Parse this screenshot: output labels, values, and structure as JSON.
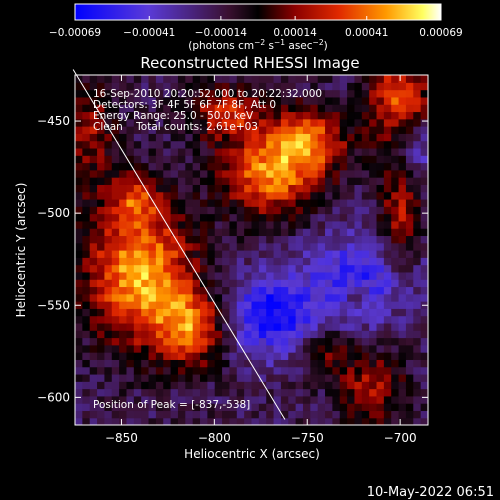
{
  "chart_data": {
    "type": "heatmap",
    "title": "Reconstructed RHESSI Image",
    "xlabel": "Heliocentric X (arcsec)",
    "ylabel": "Heliocentric Y (arcsec)",
    "xlim": [
      -875,
      -685
    ],
    "ylim": [
      -615,
      -425
    ],
    "x_ticks": [
      -850,
      -800,
      -750,
      -700
    ],
    "y_ticks": [
      -600,
      -550,
      -500,
      -450
    ],
    "x_tick_labels": [
      "−850",
      "−800",
      "−750",
      "−700"
    ],
    "y_tick_labels": [
      "−600",
      "−550",
      "−500",
      "−450"
    ],
    "colorbar": {
      "range": [
        -0.00069,
        0.00069
      ],
      "tick_values": [
        -0.00069,
        -0.00041,
        -0.00014,
        0.00014,
        0.00041,
        0.00069
      ],
      "tick_labels": [
        "−0.00069",
        "−0.00041",
        "−0.00014",
        "0.00014",
        "0.00041",
        "0.00069"
      ],
      "units_text": "(photons cm",
      "units_sup1": "−2",
      "units_mid": " s",
      "units_sup2": "−1",
      "units_end": " asec",
      "units_sup3": "−2",
      "units_close": ")"
    },
    "annotations": [
      "16-Sep-2010 20:20:52.000 to 20:22:32.000",
      "Detectors: 3F 4F 5F 6F 7F 8F, Att 0",
      "Energy Range: 25.0 - 50.0 keV",
      "Clean    Total counts: 2.61e+03"
    ],
    "peak_label": "Position of Peak = [-837,-538]",
    "peak": [
      -837,
      -538
    ],
    "limb_line": [
      [
        -876,
        -422
      ],
      [
        -762,
        -612
      ]
    ],
    "sources": [
      {
        "x": -840,
        "y": -532,
        "sigma_x": 20,
        "sigma_y": 26,
        "amp": 0.00069
      },
      {
        "x": -812,
        "y": -562,
        "sigma_x": 14,
        "sigma_y": 14,
        "amp": 0.00052
      },
      {
        "x": -843,
        "y": -492,
        "sigma_x": 9,
        "sigma_y": 9,
        "amp": 0.00034
      },
      {
        "x": -770,
        "y": -478,
        "sigma_x": 18,
        "sigma_y": 16,
        "amp": 0.0006
      },
      {
        "x": -748,
        "y": -460,
        "sigma_x": 14,
        "sigma_y": 12,
        "amp": 0.0005
      },
      {
        "x": -793,
        "y": -445,
        "sigma_x": 14,
        "sigma_y": 10,
        "amp": 0.0004
      },
      {
        "x": -700,
        "y": -438,
        "sigma_x": 12,
        "sigma_y": 18,
        "amp": 0.0005
      },
      {
        "x": -700,
        "y": -505,
        "sigma_x": 8,
        "sigma_y": 26,
        "amp": 0.0004
      },
      {
        "x": -715,
        "y": -595,
        "sigma_x": 12,
        "sigma_y": 14,
        "amp": 0.00036
      },
      {
        "x": -740,
        "y": -575,
        "sigma_x": 10,
        "sigma_y": 10,
        "amp": 0.00026
      },
      {
        "x": -868,
        "y": -455,
        "sigma_x": 10,
        "sigma_y": 22,
        "amp": 0.00032
      },
      {
        "x": -723,
        "y": -545,
        "sigma_x": 6,
        "sigma_y": 6,
        "amp": 0.00022
      }
    ],
    "negative_regions": [
      {
        "x": -770,
        "y": -555,
        "sigma_x": 18,
        "sigma_y": 16,
        "amp": -0.00048
      },
      {
        "x": -718,
        "y": -535,
        "sigma_x": 22,
        "sigma_y": 18,
        "amp": -0.0004
      },
      {
        "x": -690,
        "y": -465,
        "sigma_x": 10,
        "sigma_y": 12,
        "amp": -0.0003
      }
    ]
  },
  "footer": {
    "timestamp": "10-May-2022 06:51"
  }
}
